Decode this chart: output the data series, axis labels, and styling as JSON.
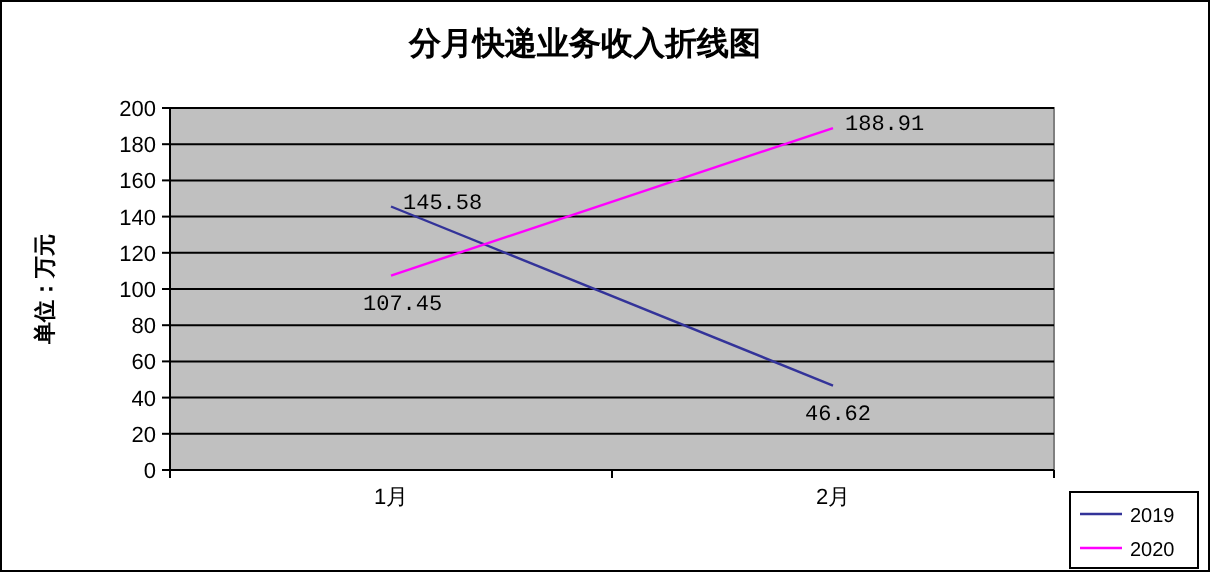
{
  "chart_data": {
    "type": "line",
    "title": "分月快递业务收入折线图",
    "ylabel": "单位：万元",
    "categories": [
      "1月",
      "2月"
    ],
    "series": [
      {
        "name": "2019",
        "color": "#333399",
        "values": [
          145.58,
          46.62
        ]
      },
      {
        "name": "2020",
        "color": "#ff00ff",
        "values": [
          107.45,
          188.91
        ]
      }
    ],
    "ylim": [
      0,
      200
    ],
    "yticks": [
      0,
      20,
      40,
      60,
      80,
      100,
      120,
      140,
      160,
      180,
      200
    ],
    "grid": "y",
    "legend": "bottom right",
    "data_labels": true,
    "marker": "none",
    "line_style": "solid"
  }
}
